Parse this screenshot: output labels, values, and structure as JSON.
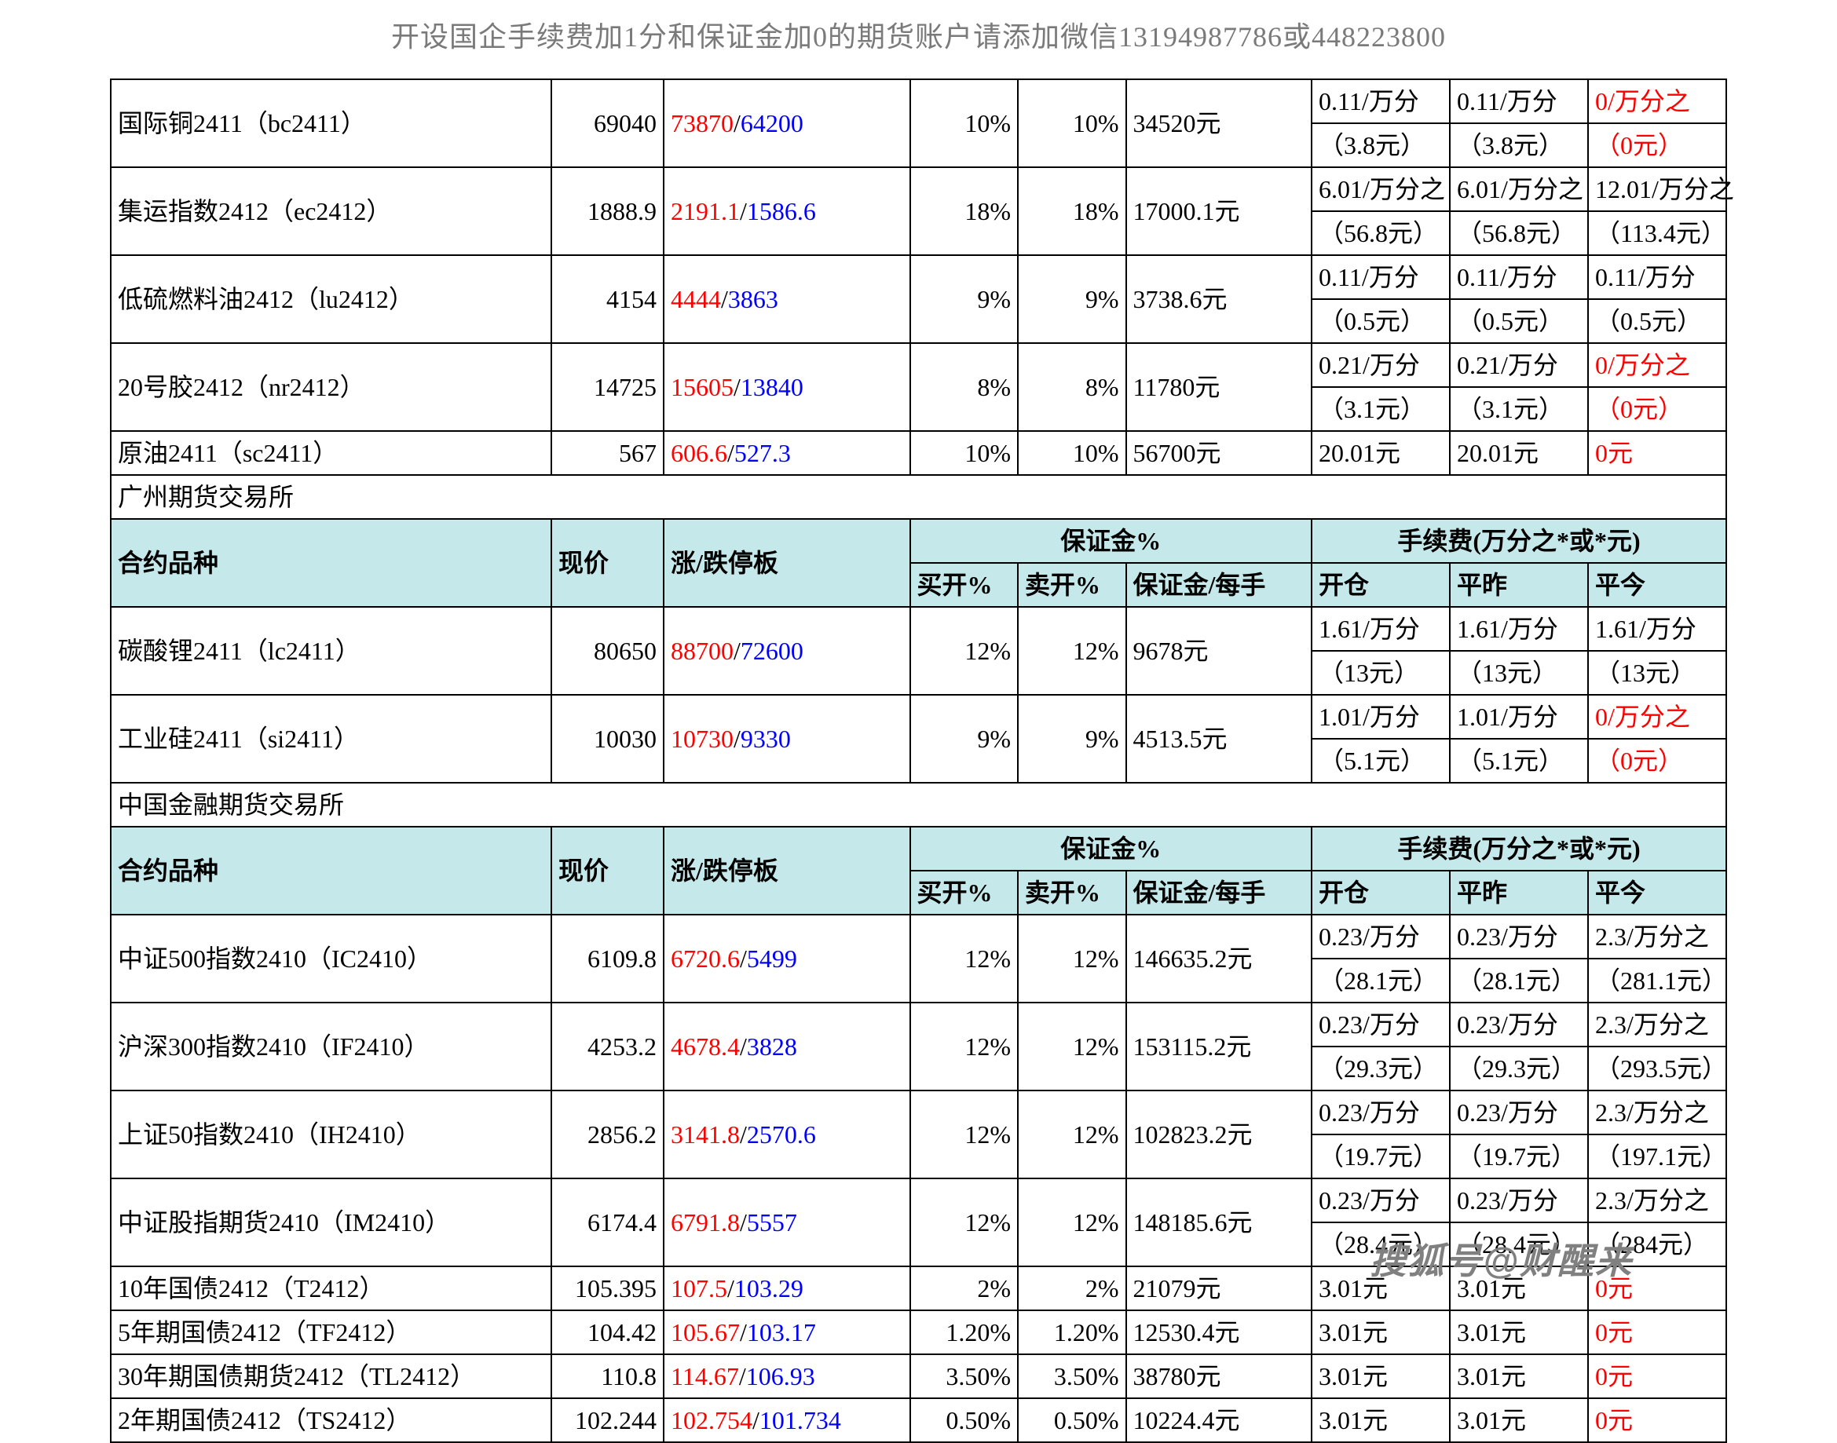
{
  "title": "开设国企手续费加1分和保证金加0的期货账户请添加微信13194987786或448223800",
  "watermark": "搜狐号@财醒来",
  "labels": {
    "contract": "合约品种",
    "price": "现价",
    "updown": "涨/跌停板",
    "margin_pct": "保证金%",
    "buy_pct": "买开%",
    "sell_pct": "卖开%",
    "margin_each": "保证金/每手",
    "fee": "手续费(万分之*或*元)",
    "open": "开仓",
    "close_y": "平昨",
    "close_t": "平今"
  },
  "sec0_rows": [
    {
      "name": "国际铜2411（bc2411）",
      "price": "69040",
      "up": "73870",
      "dn": "64200",
      "b": "10%",
      "s": "10%",
      "m": "34520元",
      "f": [
        [
          "0.11/万分",
          "0.11/万分",
          "0/万分之",
          "red"
        ],
        [
          "（3.8元）",
          "（3.8元）",
          "（0元）",
          "red"
        ]
      ]
    },
    {
      "name": "集运指数2412（ec2412）",
      "price": "1888.9",
      "up": "2191.1",
      "dn": "1586.6",
      "b": "18%",
      "s": "18%",
      "m": "17000.1元",
      "f": [
        [
          "6.01/万分之",
          "6.01/万分之",
          "12.01/万分之",
          ""
        ],
        [
          "（56.8元）",
          "（56.8元）",
          "（113.4元）",
          ""
        ]
      ]
    },
    {
      "name": "低硫燃料油2412（lu2412）",
      "price": "4154",
      "up": "4444",
      "dn": "3863",
      "b": "9%",
      "s": "9%",
      "m": "3738.6元",
      "f": [
        [
          "0.11/万分",
          "0.11/万分",
          "0.11/万分",
          ""
        ],
        [
          "（0.5元）",
          "（0.5元）",
          "（0.5元）",
          ""
        ]
      ]
    },
    {
      "name": "20号胶2412（nr2412）",
      "price": "14725",
      "up": "15605",
      "dn": "13840",
      "b": "8%",
      "s": "8%",
      "m": "11780元",
      "f": [
        [
          "0.21/万分",
          "0.21/万分",
          "0/万分之",
          "red"
        ],
        [
          "（3.1元）",
          "（3.1元）",
          "（0元）",
          "red"
        ]
      ]
    }
  ],
  "sec0_single": {
    "name": "原油2411（sc2411）",
    "price": "567",
    "up": "606.6",
    "dn": "527.3",
    "b": "10%",
    "s": "10%",
    "m": "56700元",
    "f": [
      "20.01元",
      "20.01元",
      "0元",
      "red"
    ]
  },
  "sec1_title": "广州期货交易所",
  "sec1_rows": [
    {
      "name": "碳酸锂2411（lc2411）",
      "price": "80650",
      "up": "88700",
      "dn": "72600",
      "b": "12%",
      "s": "12%",
      "m": "9678元",
      "f": [
        [
          "1.61/万分",
          "1.61/万分",
          "1.61/万分",
          ""
        ],
        [
          "（13元）",
          "（13元）",
          "（13元）",
          ""
        ]
      ]
    },
    {
      "name": "工业硅2411（si2411）",
      "price": "10030",
      "up": "10730",
      "dn": "9330",
      "b": "9%",
      "s": "9%",
      "m": "4513.5元",
      "f": [
        [
          "1.01/万分",
          "1.01/万分",
          "0/万分之",
          "red"
        ],
        [
          "（5.1元）",
          "（5.1元）",
          "（0元）",
          "red"
        ]
      ]
    }
  ],
  "sec2_title": "中国金融期货交易所",
  "sec2_rows": [
    {
      "name": "中证500指数2410（IC2410）",
      "price": "6109.8",
      "up": "6720.6",
      "dn": "5499",
      "b": "12%",
      "s": "12%",
      "m": "146635.2元",
      "f": [
        [
          "0.23/万分",
          "0.23/万分",
          "2.3/万分之",
          ""
        ],
        [
          "（28.1元）",
          "（28.1元）",
          "（281.1元）",
          ""
        ]
      ]
    },
    {
      "name": "沪深300指数2410（IF2410）",
      "price": "4253.2",
      "up": "4678.4",
      "dn": "3828",
      "b": "12%",
      "s": "12%",
      "m": "153115.2元",
      "f": [
        [
          "0.23/万分",
          "0.23/万分",
          "2.3/万分之",
          ""
        ],
        [
          "（29.3元）",
          "（29.3元）",
          "（293.5元）",
          ""
        ]
      ]
    },
    {
      "name": "上证50指数2410（IH2410）",
      "price": "2856.2",
      "up": "3141.8",
      "dn": "2570.6",
      "b": "12%",
      "s": "12%",
      "m": "102823.2元",
      "f": [
        [
          "0.23/万分",
          "0.23/万分",
          "2.3/万分之",
          ""
        ],
        [
          "（19.7元）",
          "（19.7元）",
          "（197.1元）",
          ""
        ]
      ]
    },
    {
      "name": "中证股指期货2410（IM2410）",
      "price": "6174.4",
      "up": "6791.8",
      "dn": "5557",
      "b": "12%",
      "s": "12%",
      "m": "148185.6元",
      "f": [
        [
          "0.23/万分",
          "0.23/万分",
          "2.3/万分之",
          ""
        ],
        [
          "（28.4元）",
          "（28.4元）",
          "（284元）",
          ""
        ]
      ]
    }
  ],
  "sec2_single": [
    {
      "name": "10年国债2412（T2412）",
      "price": "105.395",
      "up": "107.5",
      "dn": "103.29",
      "b": "2%",
      "s": "2%",
      "m": "21079元",
      "f": [
        "3.01元",
        "3.01元",
        "0元",
        "red"
      ]
    },
    {
      "name": "5年期国债2412（TF2412）",
      "price": "104.42",
      "up": "105.67",
      "dn": "103.17",
      "b": "1.20%",
      "s": "1.20%",
      "m": "12530.4元",
      "f": [
        "3.01元",
        "3.01元",
        "0元",
        "red"
      ]
    },
    {
      "name": "30年期国债期货2412（TL2412）",
      "price": "110.8",
      "up": "114.67",
      "dn": "106.93",
      "b": "3.50%",
      "s": "3.50%",
      "m": "38780元",
      "f": [
        "3.01元",
        "3.01元",
        "0元",
        "red"
      ]
    },
    {
      "name": "2年期国债2412（TS2412）",
      "price": "102.244",
      "up": "102.754",
      "dn": "101.734",
      "b": "0.50%",
      "s": "0.50%",
      "m": "10224.4元",
      "f": [
        "3.01元",
        "3.01元",
        "0元",
        "red"
      ]
    }
  ]
}
